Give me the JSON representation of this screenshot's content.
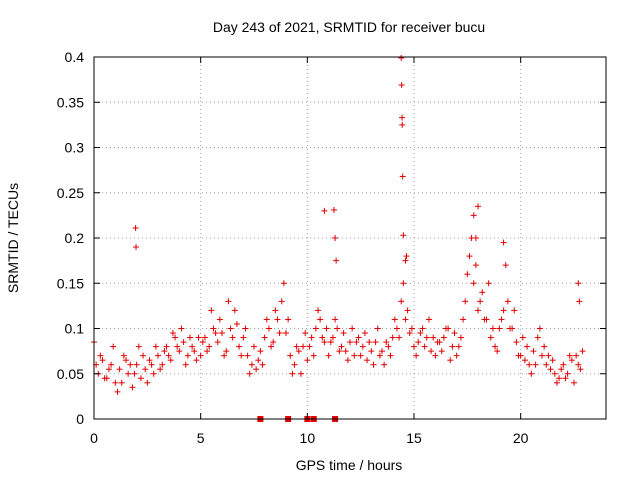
{
  "chart_data": {
    "type": "scatter",
    "title": "Day 243 of 2021, SRMTID for receiver bucu",
    "xlabel": "GPS time / hours",
    "ylabel": "SRMTID / TECUs",
    "xlim": [
      0,
      24
    ],
    "ylim": [
      0,
      0.4
    ],
    "xticks": [
      0,
      5,
      10,
      15,
      20
    ],
    "xtick_labels": [
      "0",
      "5",
      "10",
      "15",
      "20"
    ],
    "yticks": [
      0,
      0.05,
      0.1,
      0.15,
      0.2,
      0.25,
      0.3,
      0.35,
      0.4
    ],
    "ytick_labels": [
      "0",
      "0.05",
      "0.1",
      "0.15",
      "0.2",
      "0.25",
      "0.3",
      "0.35",
      "0.4"
    ],
    "grid": true,
    "marker": "plus",
    "color": "#e00000",
    "series": [
      {
        "name": "bucu",
        "x": [
          0.0,
          0.2,
          0.4,
          0.6,
          0.8,
          1.0,
          1.2,
          1.4,
          1.6,
          1.8,
          2.0,
          2.2,
          2.4,
          2.6,
          2.8,
          3.0,
          3.2,
          3.4,
          3.6,
          3.8,
          4.0,
          4.2,
          4.4,
          4.6,
          4.8,
          5.0,
          5.2,
          5.4,
          5.6,
          5.8,
          6.0,
          6.2,
          6.4,
          6.6,
          6.8,
          7.0,
          7.2,
          7.4,
          7.6,
          7.8,
          8.0,
          8.2,
          8.4,
          8.6,
          8.8,
          9.0,
          9.2,
          9.4,
          9.6,
          9.8,
          10.0,
          10.2,
          10.4,
          10.6,
          10.8,
          11.0,
          11.2,
          11.4,
          11.6,
          11.8,
          12.0,
          12.2,
          12.4,
          12.6,
          12.8,
          13.0,
          13.2,
          13.4,
          13.6,
          13.8,
          14.0,
          14.2,
          14.4,
          14.6,
          14.8,
          15.0,
          15.2,
          15.4,
          15.6,
          15.8,
          16.0,
          16.2,
          16.4,
          16.6,
          16.8,
          17.0,
          17.2,
          17.4,
          17.6,
          17.8,
          18.0,
          18.2,
          18.4,
          18.6,
          18.8,
          19.0,
          19.2,
          19.4,
          19.6,
          19.8,
          20.0,
          20.2,
          20.4,
          20.6,
          20.8,
          21.0,
          21.2,
          21.4,
          21.6,
          21.8,
          22.0,
          22.2,
          22.4,
          22.6,
          22.8,
          0.1,
          0.3,
          0.5,
          0.7,
          0.9,
          1.1,
          1.3,
          1.5,
          1.7,
          1.9,
          2.1,
          2.3,
          2.5,
          2.7,
          2.9,
          3.1,
          3.3,
          3.5,
          3.7,
          3.9,
          4.1,
          4.3,
          4.5,
          4.7,
          4.9,
          5.1,
          5.3,
          5.5,
          5.7,
          5.9,
          6.1,
          6.3,
          6.5,
          6.7,
          6.9,
          7.1,
          7.3,
          7.5,
          7.7,
          7.9,
          8.1,
          8.3,
          8.5,
          8.7,
          8.9,
          9.1,
          9.3,
          9.5,
          9.7,
          9.9,
          10.1,
          10.3,
          10.5,
          10.7,
          10.9,
          11.1,
          11.3,
          11.5,
          11.7,
          11.9,
          12.1,
          12.3,
          12.5,
          12.7,
          12.9,
          13.1,
          13.3,
          13.5,
          13.7,
          13.9,
          14.1,
          14.3,
          14.5,
          14.7,
          14.9,
          15.1,
          15.3,
          15.5,
          15.7,
          15.9,
          16.1,
          16.3,
          16.5,
          16.7,
          16.9,
          17.1,
          17.3,
          17.5,
          17.7,
          17.9,
          18.1,
          18.3,
          18.5,
          18.7,
          18.9,
          19.1,
          19.3,
          19.5,
          19.7,
          19.9,
          20.1,
          20.3,
          20.5,
          20.7,
          20.9,
          21.1,
          21.3,
          21.5,
          21.7,
          21.9,
          22.1,
          22.3,
          22.5,
          22.7,
          22.9,
          1.95,
          1.97,
          10.8,
          11.25,
          11.3,
          11.35,
          14.4,
          14.42,
          14.44,
          14.45,
          14.47,
          14.5,
          14.6,
          14.65,
          17.8,
          17.9,
          18.0,
          19.2,
          22.7,
          22.75
        ],
        "y": [
          0.085,
          0.05,
          0.065,
          0.045,
          0.06,
          0.04,
          0.055,
          0.07,
          0.05,
          0.035,
          0.06,
          0.045,
          0.055,
          0.065,
          0.05,
          0.07,
          0.06,
          0.08,
          0.065,
          0.09,
          0.075,
          0.085,
          0.07,
          0.08,
          0.065,
          0.07,
          0.09,
          0.08,
          0.1,
          0.085,
          0.095,
          0.075,
          0.1,
          0.12,
          0.08,
          0.09,
          0.07,
          0.06,
          0.055,
          0.075,
          0.09,
          0.1,
          0.085,
          0.11,
          0.13,
          0.095,
          0.07,
          0.06,
          0.075,
          0.08,
          0.065,
          0.09,
          0.1,
          0.11,
          0.085,
          0.07,
          0.09,
          0.1,
          0.08,
          0.075,
          0.085,
          0.07,
          0.09,
          0.08,
          0.065,
          0.075,
          0.085,
          0.07,
          0.06,
          0.08,
          0.09,
          0.1,
          0.13,
          0.11,
          0.095,
          0.08,
          0.085,
          0.1,
          0.09,
          0.075,
          0.07,
          0.085,
          0.09,
          0.1,
          0.08,
          0.07,
          0.09,
          0.13,
          0.18,
          0.15,
          0.12,
          0.14,
          0.11,
          0.09,
          0.08,
          0.1,
          0.12,
          0.13,
          0.1,
          0.085,
          0.07,
          0.065,
          0.06,
          0.075,
          0.09,
          0.07,
          0.06,
          0.055,
          0.05,
          0.045,
          0.06,
          0.05,
          0.065,
          0.07,
          0.055,
          0.06,
          0.07,
          0.045,
          0.055,
          0.08,
          0.03,
          0.04,
          0.065,
          0.06,
          0.05,
          0.08,
          0.07,
          0.04,
          0.06,
          0.08,
          0.055,
          0.075,
          0.07,
          0.095,
          0.08,
          0.1,
          0.06,
          0.09,
          0.075,
          0.09,
          0.085,
          0.075,
          0.12,
          0.095,
          0.11,
          0.07,
          0.13,
          0.09,
          0.105,
          0.07,
          0.1,
          0.05,
          0.08,
          0.065,
          0.06,
          0.11,
          0.08,
          0.12,
          0.095,
          0.15,
          0.11,
          0.05,
          0.08,
          0.05,
          0.095,
          0.08,
          0.07,
          0.12,
          0.09,
          0.1,
          0.085,
          0.11,
          0.075,
          0.095,
          0.065,
          0.1,
          0.085,
          0.07,
          0.095,
          0.085,
          0.06,
          0.1,
          0.075,
          0.085,
          0.07,
          0.11,
          0.09,
          0.15,
          0.12,
          0.1,
          0.07,
          0.095,
          0.08,
          0.11,
          0.09,
          0.085,
          0.075,
          0.1,
          0.065,
          0.095,
          0.08,
          0.11,
          0.16,
          0.2,
          0.17,
          0.13,
          0.11,
          0.15,
          0.1,
          0.075,
          0.11,
          0.17,
          0.1,
          0.12,
          0.07,
          0.09,
          0.08,
          0.05,
          0.06,
          0.1,
          0.08,
          0.07,
          0.065,
          0.04,
          0.055,
          0.045,
          0.07,
          0.04,
          0.06,
          0.075,
          0.211,
          0.19,
          0.23,
          0.231,
          0.2,
          0.175,
          0.399,
          0.369,
          0.333,
          0.325,
          0.268,
          0.203,
          0.175,
          0.18,
          0.225,
          0.2,
          0.235,
          0.195,
          0.15,
          0.13
        ],
        "gaps": [
          7.8,
          9.1,
          10.0,
          10.3,
          11.3
        ]
      }
    ]
  }
}
